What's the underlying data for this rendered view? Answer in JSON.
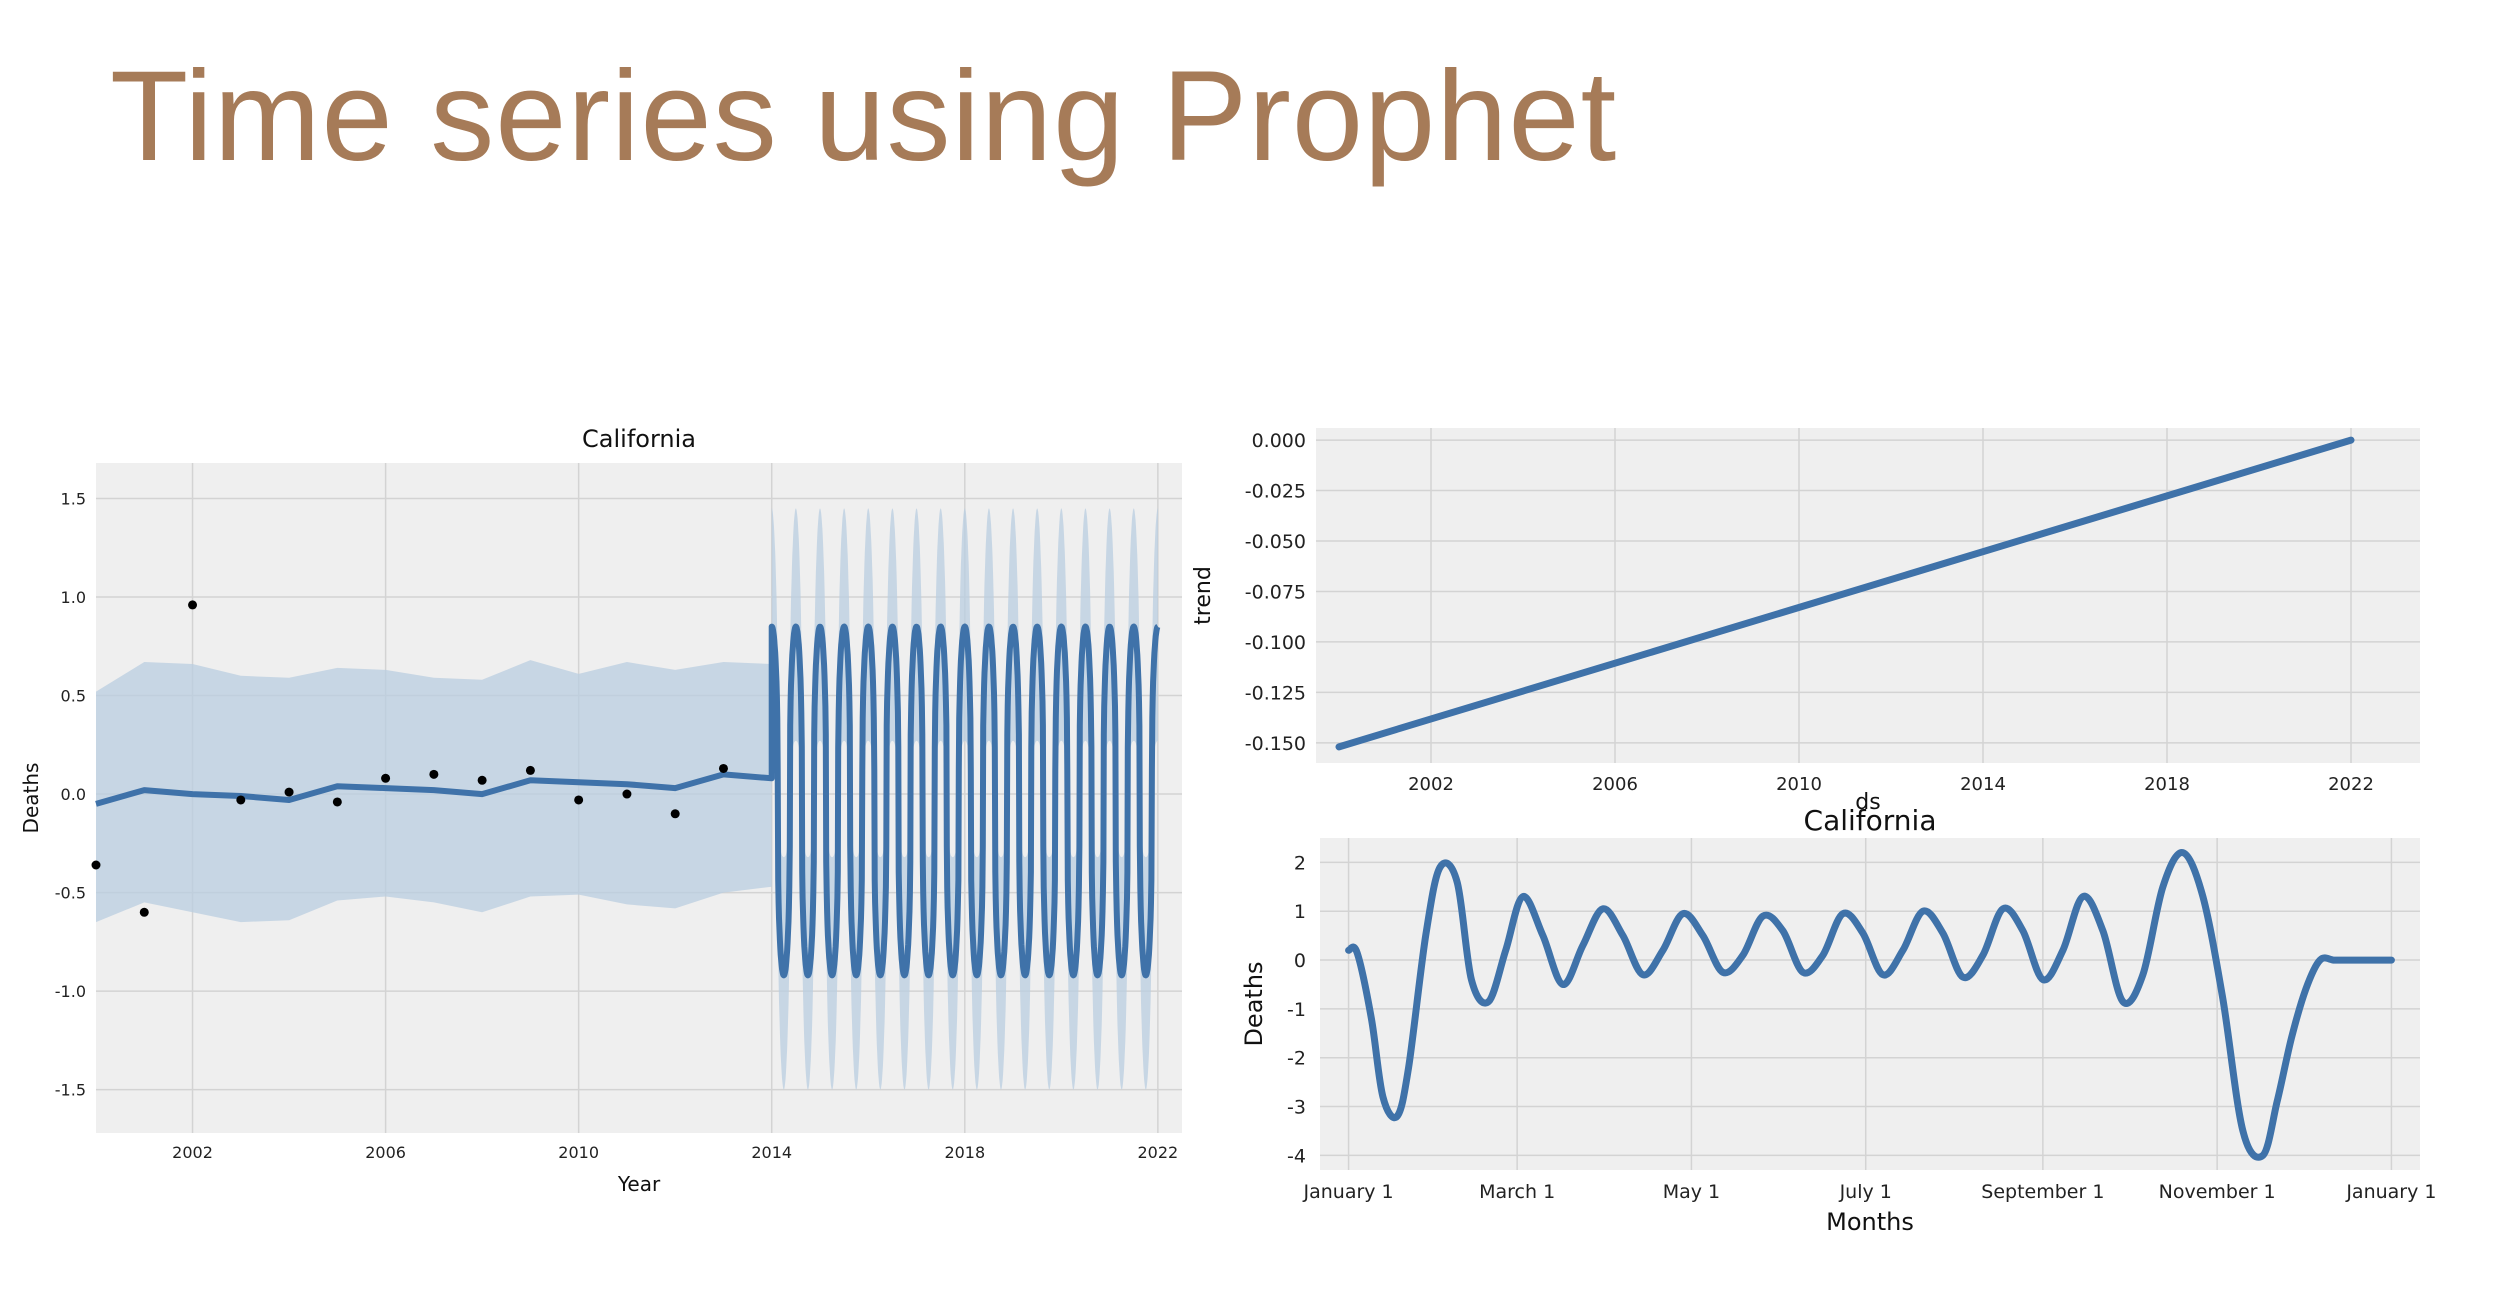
{
  "slide": {
    "title": "Time series using Prophet"
  },
  "colors": {
    "title": "#a67b58",
    "line": "#3f72a9",
    "band": "#b9cde0",
    "plot_bg": "#efefef",
    "grid": "#d3d3d3",
    "point": "#000000"
  },
  "chart_data": [
    {
      "type": "line",
      "title": "California",
      "xlabel": "Year",
      "ylabel": "Deaths",
      "xlim": [
        2000,
        2022.5
      ],
      "ylim": [
        -1.72,
        1.68
      ],
      "x_ticks": [
        "2002",
        "2006",
        "2010",
        "2014",
        "2018",
        "2022"
      ],
      "y_ticks": [
        "1.5",
        "1.0",
        "0.5",
        "0.0",
        "-0.5",
        "-1.0",
        "-1.5"
      ],
      "grid": true,
      "observed": {
        "x": [
          2000,
          2001,
          2002,
          2003,
          2004,
          2005,
          2006,
          2007,
          2008,
          2009,
          2010,
          2011,
          2012,
          2013
        ],
        "y": [
          -0.36,
          -0.6,
          0.96,
          -0.03,
          0.01,
          -0.04,
          0.08,
          0.1,
          0.07,
          0.12,
          -0.03,
          0.0,
          -0.1,
          0.13
        ]
      },
      "forecast": {
        "x": [
          2000,
          2001,
          2002,
          2003,
          2004,
          2005,
          2006,
          2007,
          2008,
          2009,
          2010,
          2011,
          2012,
          2013,
          2014
        ],
        "yhat": [
          -0.05,
          0.02,
          0.0,
          -0.01,
          -0.03,
          0.04,
          0.03,
          0.02,
          0.0,
          0.07,
          0.06,
          0.05,
          0.03,
          0.1,
          0.08
        ],
        "yhat_lower": [
          -0.65,
          -0.55,
          -0.6,
          -0.65,
          -0.64,
          -0.54,
          -0.52,
          -0.55,
          -0.6,
          -0.52,
          -0.51,
          -0.56,
          -0.58,
          -0.5,
          -0.47
        ],
        "yhat_upper": [
          0.52,
          0.67,
          0.66,
          0.6,
          0.59,
          0.64,
          0.63,
          0.59,
          0.58,
          0.68,
          0.61,
          0.67,
          0.63,
          0.67,
          0.66
        ]
      },
      "oscillation": {
        "x_range": [
          2014,
          2022
        ],
        "cycles_per_year": 2,
        "peak": 0.85,
        "trough": -0.92,
        "band_upper": 1.45,
        "band_lower": -1.5
      }
    },
    {
      "type": "line",
      "title": "",
      "xlabel": "ds",
      "ylabel": "trend",
      "xlim": [
        1999.5,
        2023.5
      ],
      "ylim": [
        -0.16,
        0.006
      ],
      "x_ticks": [
        "2002",
        "2006",
        "2010",
        "2014",
        "2018",
        "2022"
      ],
      "y_ticks": [
        "0.000",
        "-0.025",
        "-0.050",
        "-0.075",
        "-0.100",
        "-0.125",
        "-0.150"
      ],
      "grid": true,
      "x": [
        2000,
        2022
      ],
      "y": [
        -0.152,
        0.0
      ]
    },
    {
      "type": "line",
      "title": "California",
      "xlabel": "Months",
      "ylabel": "Deaths",
      "xlim": [
        -10,
        375
      ],
      "ylim": [
        -4.3,
        2.5
      ],
      "x_ticks": [
        "January 1",
        "March 1",
        "May 1",
        "July 1",
        "September 1",
        "November 1",
        "January 1"
      ],
      "x_tick_days": [
        0,
        59,
        120,
        181,
        243,
        304,
        365
      ],
      "y_ticks": [
        "2",
        "1",
        "0",
        "-1",
        "-2",
        "-3",
        "-4"
      ],
      "grid": true,
      "x": [
        0,
        3,
        8,
        12,
        17,
        21,
        27,
        32,
        38,
        43,
        49,
        55,
        61,
        68,
        75,
        82,
        89,
        96,
        103,
        110,
        117,
        124,
        131,
        138,
        145,
        152,
        159,
        166,
        173,
        180,
        187,
        194,
        201,
        208,
        215,
        222,
        229,
        236,
        243,
        250,
        257,
        264,
        271,
        278,
        285,
        292,
        299,
        306,
        313,
        320,
        325,
        330,
        335,
        340,
        345,
        350,
        355,
        360,
        365
      ],
      "y": [
        0.2,
        0.15,
        -1.2,
        -2.8,
        -3.2,
        -2.2,
        0.5,
        1.9,
        1.6,
        -0.4,
        -0.85,
        0.2,
        1.3,
        0.5,
        -0.5,
        0.3,
        1.05,
        0.5,
        -0.3,
        0.2,
        0.95,
        0.5,
        -0.25,
        0.1,
        0.9,
        0.6,
        -0.25,
        0.1,
        0.95,
        0.55,
        -0.3,
        0.2,
        1.0,
        0.55,
        -0.35,
        0.1,
        1.05,
        0.6,
        -0.4,
        0.2,
        1.3,
        0.6,
        -0.85,
        -0.3,
        1.5,
        2.2,
        1.3,
        -0.8,
        -3.5,
        -4.0,
        -2.9,
        -1.6,
        -0.6,
        0.0,
        0.0,
        0.0,
        0.0,
        0.0,
        0.0
      ]
    }
  ]
}
